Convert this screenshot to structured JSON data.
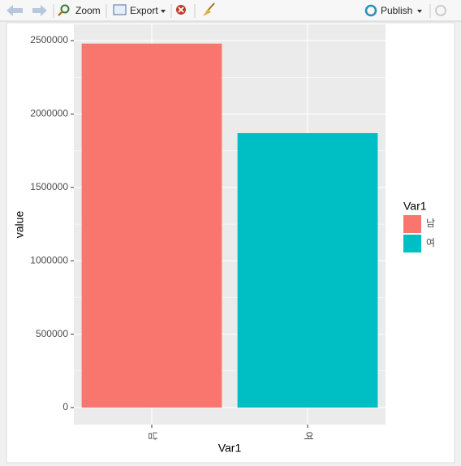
{
  "toolbar": {
    "zoom": "Zoom",
    "export": "Export",
    "publish": "Publish"
  },
  "chart_data": {
    "type": "bar",
    "categories": [
      "남",
      "여"
    ],
    "values": [
      2480000,
      1870000
    ],
    "colors": [
      "#F8766D",
      "#00BFC4"
    ],
    "x_label": "Var1",
    "y_label": "value",
    "legend_title": "Var1",
    "ylim": [
      -116000,
      2611000
    ],
    "yticks": [
      0,
      500000,
      1000000,
      1500000,
      2000000,
      2500000
    ],
    "grid": true,
    "minor_grid": true,
    "legend": "right",
    "panel_color": "#EBEBEB"
  }
}
